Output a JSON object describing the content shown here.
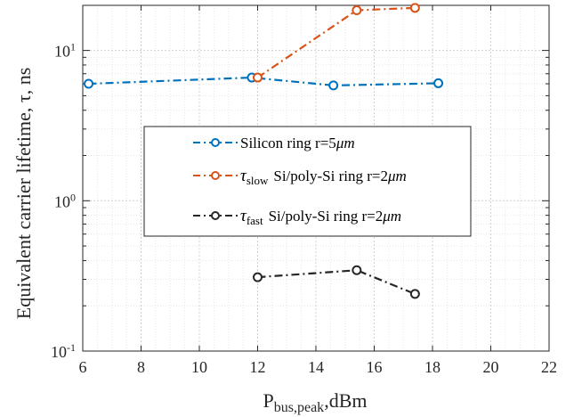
{
  "chart_data": {
    "type": "line",
    "title": "",
    "xlabel_main": "P",
    "xlabel_sub": "bus,peak",
    "xlabel_rest": ",dBm",
    "ylabel": "Equivalent carrier lifetime, τ, ns",
    "xlim": [
      6,
      22
    ],
    "ylim_log10": [
      -1,
      1.3
    ],
    "y_scale": "log",
    "grid": true,
    "minor_grid": true,
    "legend_position": "center",
    "x_ticks": [
      "6",
      "8",
      "10",
      "12",
      "14",
      "16",
      "18",
      "20",
      "22"
    ],
    "y_ticks": [
      {
        "value": 0.1,
        "base": "10",
        "exp": "-1"
      },
      {
        "value": 1,
        "base": "10",
        "exp": "0"
      },
      {
        "value": 10,
        "base": "10",
        "exp": "1"
      }
    ],
    "series": [
      {
        "legend_main": "Silicon ring  r=5",
        "legend_sub": "",
        "legend_unit": "μm",
        "color": "#0072BD",
        "x": [
          6.2,
          11.8,
          14.6,
          18.2
        ],
        "y": [
          6.0,
          6.6,
          5.85,
          6.05
        ]
      },
      {
        "legend_main": "Si/poly-Si ring r=2",
        "legend_tau": "τ",
        "legend_sub": "slow",
        "legend_unit": "μm",
        "color": "#D95319",
        "x": [
          12.0,
          15.4,
          17.4
        ],
        "y": [
          6.6,
          18.5,
          19.2
        ]
      },
      {
        "legend_main": "Si/poly-Si ring r=2",
        "legend_tau": "τ",
        "legend_sub": "fast",
        "legend_unit": "μm",
        "color": "#262626",
        "x": [
          12.0,
          15.4,
          17.4
        ],
        "y": [
          0.31,
          0.345,
          0.24
        ]
      }
    ]
  }
}
